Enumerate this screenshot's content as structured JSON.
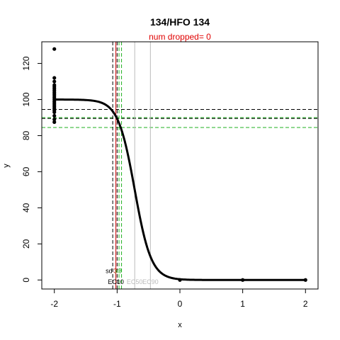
{
  "chart_data": {
    "type": "scatter",
    "title": "134/HFO 134",
    "subtitle": "num dropped= 0",
    "xlabel": "x",
    "ylabel": "y",
    "xlim": [
      -2.2,
      2.2
    ],
    "ylim": [
      -5,
      132
    ],
    "x_ticks": [
      -2,
      -1,
      0,
      1,
      2
    ],
    "y_ticks": [
      0,
      20,
      40,
      60,
      80,
      100,
      120
    ],
    "points": [
      {
        "x": -2,
        "y": 128
      },
      {
        "x": -2,
        "y": 112
      },
      {
        "x": -2,
        "y": 110
      },
      {
        "x": -2,
        "y": 108
      },
      {
        "x": -2,
        "y": 107
      },
      {
        "x": -2,
        "y": 106
      },
      {
        "x": -2,
        "y": 105
      },
      {
        "x": -2,
        "y": 104
      },
      {
        "x": -2,
        "y": 103
      },
      {
        "x": -2,
        "y": 102
      },
      {
        "x": -2,
        "y": 101
      },
      {
        "x": -2,
        "y": 100
      },
      {
        "x": -2,
        "y": 99
      },
      {
        "x": -2,
        "y": 98
      },
      {
        "x": -2,
        "y": 97
      },
      {
        "x": -2,
        "y": 96
      },
      {
        "x": -2,
        "y": 95
      },
      {
        "x": -2,
        "y": 94
      },
      {
        "x": -2,
        "y": 93
      },
      {
        "x": -2,
        "y": 91
      },
      {
        "x": -2,
        "y": 89
      },
      {
        "x": -2,
        "y": 87.5
      },
      {
        "x": 0,
        "y": 0
      },
      {
        "x": 1,
        "y": 0
      },
      {
        "x": 2,
        "y": 0
      }
    ],
    "fit_curve": {
      "top": 100,
      "bottom": 0,
      "ec50_log": -0.72,
      "hill_slope": 3.3,
      "x_from": -2,
      "x_to": 2
    },
    "hlines": [
      {
        "y": 94.5,
        "color": "#000000",
        "style": "dashed"
      },
      {
        "y": 89.5,
        "color": "#000000",
        "style": "dashed"
      },
      {
        "y": 90.0,
        "color": "#22b022",
        "style": "dashed"
      },
      {
        "y": 84.5,
        "color": "#22b022",
        "style": "dashed"
      }
    ],
    "vlines": [
      {
        "x": -1.07,
        "color": "#000000",
        "style": "dashed"
      },
      {
        "x": -1.0,
        "color": "#000000",
        "style": "dashed"
      },
      {
        "x": -1.02,
        "color": "#cc0000",
        "style": "solid"
      },
      {
        "x": -0.97,
        "color": "#22b022",
        "style": "dashed"
      },
      {
        "x": -0.93,
        "color": "#22b022",
        "style": "dashed"
      },
      {
        "x": -0.72,
        "color": "#bbbbbb",
        "style": "solid"
      },
      {
        "x": -0.47,
        "color": "#bbbbbb",
        "style": "solid"
      }
    ],
    "annotations": [
      {
        "text": "sd",
        "x": -1.13,
        "y": 5,
        "color": "#000000"
      },
      {
        "text": "3",
        "x": -1.03,
        "y": 5,
        "color": "#cc0000"
      },
      {
        "text": "x3",
        "x": -0.98,
        "y": 5,
        "color": "#22b022"
      },
      {
        "text": "EC10",
        "x": -1.02,
        "y": -1,
        "color": "#000000"
      },
      {
        "text": "EC50",
        "x": -0.72,
        "y": -1,
        "color": "#bbbbbb"
      },
      {
        "text": "EC90",
        "x": -0.47,
        "y": -1,
        "color": "#bbbbbb"
      }
    ]
  }
}
